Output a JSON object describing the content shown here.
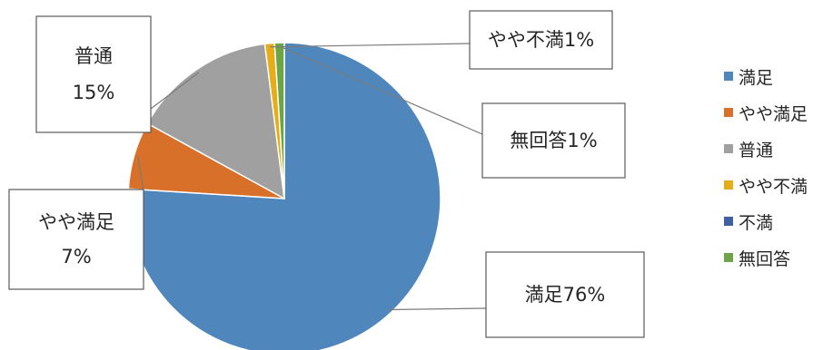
{
  "chart_data": {
    "type": "pie",
    "title": "",
    "start_angle_deg": 0,
    "direction": "clockwise",
    "slices": [
      {
        "label": "満足",
        "value": 76,
        "color": "#4f87bd",
        "callout_lines": [
          "満足76%"
        ]
      },
      {
        "label": "やや満足",
        "value": 7,
        "color": "#d9702a",
        "callout_lines": [
          "やや満足",
          "7%"
        ]
      },
      {
        "label": "普通",
        "value": 15,
        "color": "#a0a0a0",
        "callout_lines": [
          "普通",
          "15%"
        ]
      },
      {
        "label": "やや不満",
        "value": 1,
        "color": "#e6ad16",
        "callout_lines": [
          "やや不満1%"
        ]
      },
      {
        "label": "不満",
        "value": 0,
        "color": "#3f5fa6",
        "callout_lines": []
      },
      {
        "label": "無回答",
        "value": 1,
        "color": "#6ba545",
        "callout_lines": [
          "無回答1%"
        ]
      }
    ],
    "legend": {
      "position": "right",
      "items": [
        "満足",
        "やや満足",
        "普通",
        "やや不満",
        "不満",
        "無回答"
      ]
    }
  }
}
